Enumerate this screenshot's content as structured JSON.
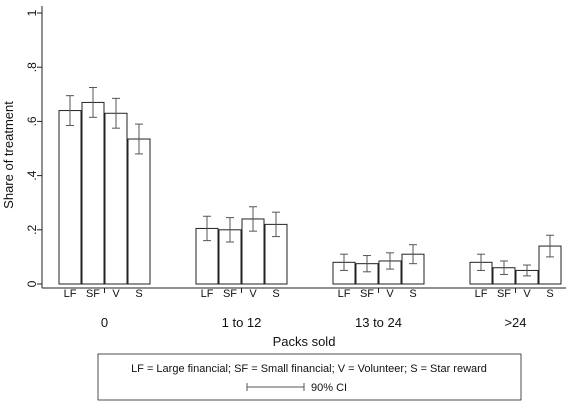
{
  "chart_data": {
    "type": "bar",
    "xlabel": "Packs sold",
    "ylabel": "Share of treatment",
    "ylim": [
      0,
      1
    ],
    "y_ticks": [
      0,
      0.2,
      0.4,
      0.6,
      0.8,
      1
    ],
    "y_tick_labels": [
      "0",
      ".2",
      ".4",
      ".6",
      ".8",
      "1"
    ],
    "grid": false,
    "categories": [
      "0",
      "1 to 12",
      "13 to 24",
      ">24"
    ],
    "bar_labels": [
      "LF",
      "SF",
      "V",
      "S"
    ],
    "series": [
      {
        "name": "LF",
        "values": [
          0.64,
          0.205,
          0.08,
          0.08
        ],
        "ci_lower": [
          0.585,
          0.16,
          0.05,
          0.05
        ],
        "ci_upper": [
          0.695,
          0.25,
          0.11,
          0.11
        ]
      },
      {
        "name": "SF",
        "values": [
          0.67,
          0.2,
          0.075,
          0.06
        ],
        "ci_lower": [
          0.615,
          0.155,
          0.045,
          0.035
        ],
        "ci_upper": [
          0.725,
          0.245,
          0.105,
          0.085
        ]
      },
      {
        "name": "V",
        "values": [
          0.63,
          0.24,
          0.085,
          0.05
        ],
        "ci_lower": [
          0.575,
          0.195,
          0.055,
          0.03
        ],
        "ci_upper": [
          0.685,
          0.285,
          0.115,
          0.07
        ]
      },
      {
        "name": "S",
        "values": [
          0.535,
          0.22,
          0.11,
          0.14
        ],
        "ci_lower": [
          0.48,
          0.175,
          0.075,
          0.1
        ],
        "ci_upper": [
          0.59,
          0.265,
          0.145,
          0.18
        ]
      }
    ],
    "legend": {
      "placement": "bottom",
      "line1": "LF = Large financial; SF = Small financial; V = Volunteer; S = Star reward",
      "line2": "90% CI"
    }
  }
}
